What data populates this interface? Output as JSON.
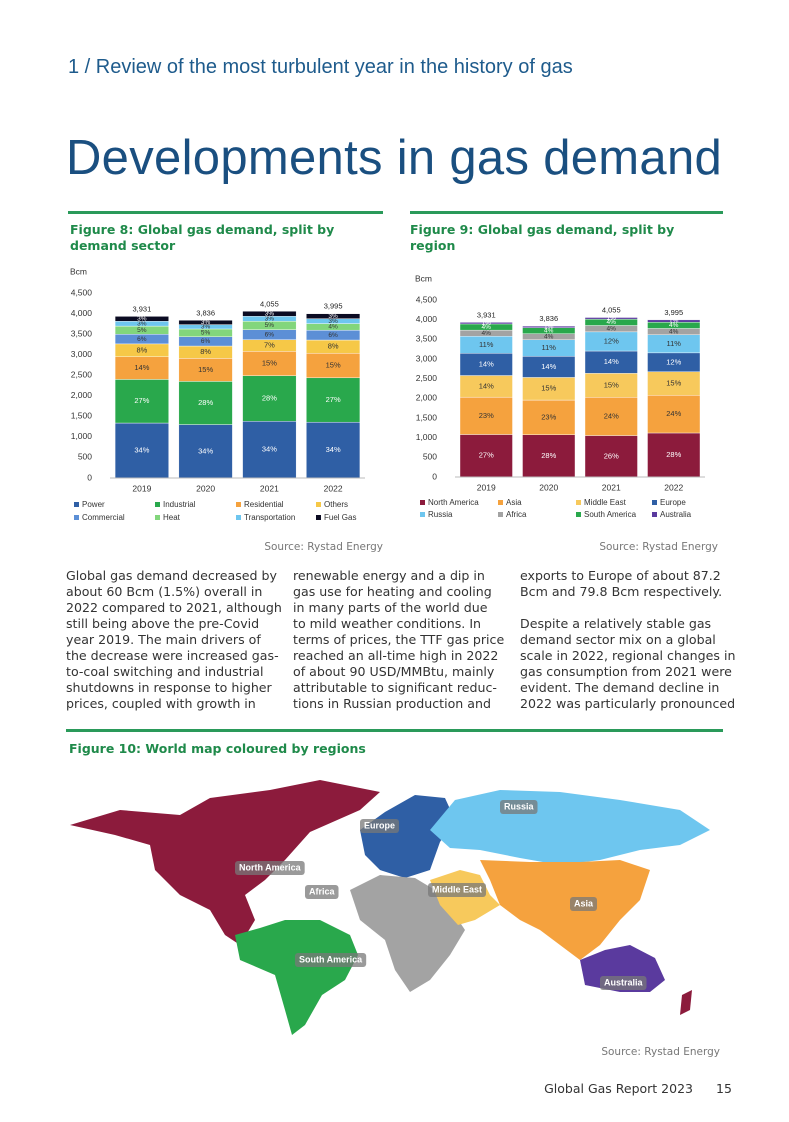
{
  "header": {
    "section": "1 / Review of the most turbulent year in the history of gas",
    "title": "Developments in gas demand"
  },
  "chart_data": [
    {
      "type": "stacked_bar",
      "title": "Figure 8: Global gas demand, split by demand sector",
      "unit_label": "Bcm",
      "source": "Source: Rystad Energy",
      "categories": [
        "2019",
        "2020",
        "2021",
        "2022"
      ],
      "ylim": [
        0,
        4500
      ],
      "yticks": [
        0,
        500,
        {
          "value": 1000,
          "label": "1,000"
        },
        {
          "value": 1500,
          "label": "1,500"
        },
        {
          "value": 2000,
          "label": "2,000"
        },
        {
          "value": 2500,
          "label": "2,500"
        },
        {
          "value": 3000,
          "label": "3,000"
        },
        {
          "value": 3500,
          "label": "3,500"
        },
        {
          "value": 4000,
          "label": "4,000"
        },
        {
          "value": 4500,
          "label": "4,500"
        }
      ],
      "totals": [
        {
          "value": 3931,
          "label": "3,931"
        },
        {
          "value": 3836,
          "label": "3,836"
        },
        {
          "value": 4055,
          "label": "4,055"
        },
        {
          "value": 3995,
          "label": "3,995"
        }
      ],
      "series": [
        {
          "name": "Power",
          "color": "#2f5fa5",
          "values": [
            1337,
            1300,
            1379,
            1358
          ],
          "share_labels": [
            "34%",
            "34%",
            "34%",
            "34%"
          ]
        },
        {
          "name": "Industrial",
          "color": "#29a84c",
          "values": [
            1061,
            1050,
            1110,
            1079
          ],
          "share_labels": [
            "27%",
            "28%",
            "28%",
            "27%"
          ]
        },
        {
          "name": "Residential",
          "color": "#f5a23e",
          "values": [
            550,
            560,
            592,
            599
          ],
          "share_labels": [
            "14%",
            "15%",
            "15%",
            "15%"
          ]
        },
        {
          "name": "Others",
          "color": "#f6c847",
          "values": [
            314,
            300,
            284,
            320
          ],
          "share_labels": [
            "8%",
            "8%",
            "7%",
            "8%"
          ]
        },
        {
          "name": "Commercial",
          "color": "#5c8fd6",
          "values": [
            236,
            225,
            243,
            240
          ],
          "share_labels": [
            "6%",
            "6%",
            "6%",
            "6%"
          ]
        },
        {
          "name": "Heat",
          "color": "#82d67c",
          "values": [
            197,
            190,
            203,
            160
          ],
          "share_labels": [
            "5%",
            "5%",
            "5%",
            "4%"
          ]
        },
        {
          "name": "Transportation",
          "color": "#6ec6ef",
          "values": [
            118,
            106,
            122,
            120
          ],
          "share_labels": [
            "3%",
            "3%",
            "3%",
            "3%"
          ]
        },
        {
          "name": "Fuel Gas",
          "color": "#0b0b22",
          "values": [
            118,
            105,
            122,
            119
          ],
          "share_labels": [
            "3%",
            "3%",
            "3%",
            "3%"
          ]
        }
      ]
    },
    {
      "type": "stacked_bar",
      "title": "Figure 9: Global gas demand, split by region",
      "unit_label": "Bcm",
      "source": "Source: Rystad Energy",
      "categories": [
        "2019",
        "2020",
        "2021",
        "2022"
      ],
      "ylim": [
        0,
        4500
      ],
      "yticks": [
        0,
        500,
        {
          "value": 1000,
          "label": "1,000"
        },
        {
          "value": 1500,
          "label": "1,500"
        },
        {
          "value": 2000,
          "label": "2,000"
        },
        {
          "value": 2500,
          "label": "2,500"
        },
        {
          "value": 3000,
          "label": "3,000"
        },
        {
          "value": 3500,
          "label": "3,500"
        },
        {
          "value": 4000,
          "label": "4,000"
        },
        {
          "value": 4500,
          "label": "4,500"
        }
      ],
      "totals": [
        {
          "value": 3931,
          "label": "3,931"
        },
        {
          "value": 3836,
          "label": "3,836"
        },
        {
          "value": 4055,
          "label": "4,055"
        },
        {
          "value": 3995,
          "label": "3,995"
        }
      ],
      "series": [
        {
          "name": "North America",
          "color": "#8c1b3c",
          "values": [
            1080,
            1074,
            1054,
            1119
          ],
          "share_labels": [
            "27%",
            "28%",
            "26%",
            "28%"
          ]
        },
        {
          "name": "Asia",
          "color": "#f5a23e",
          "values": [
            950,
            882,
            973,
            959
          ],
          "share_labels": [
            "23%",
            "23%",
            "24%",
            "24%"
          ]
        },
        {
          "name": "Middle East",
          "color": "#f7c95c",
          "values": [
            550,
            575,
            608,
            599
          ],
          "share_labels": [
            "14%",
            "15%",
            "15%",
            "15%"
          ]
        },
        {
          "name": "Europe",
          "color": "#2f5fa5",
          "values": [
            565,
            537,
            568,
            479
          ],
          "share_labels": [
            "14%",
            "14%",
            "14%",
            "12%"
          ]
        },
        {
          "name": "Russia",
          "color": "#6ec6ef",
          "values": [
            432,
            422,
            487,
            460
          ],
          "share_labels": [
            "11%",
            "11%",
            "12%",
            "11%"
          ]
        },
        {
          "name": "Africa",
          "color": "#a3a3a3",
          "values": [
            157,
            153,
            162,
            160
          ],
          "share_labels": [
            "4%",
            "4%",
            "4%",
            "4%"
          ]
        },
        {
          "name": "South America",
          "color": "#29a84c",
          "values": [
            157,
            153,
            162,
            160
          ],
          "share_labels": [
            "4%",
            "4%",
            "4%",
            "4%"
          ]
        },
        {
          "name": "Australia",
          "color": "#5a3a9e",
          "values": [
            40,
            40,
            41,
            59
          ],
          "share_labels": [
            "1%",
            "1%",
            "1%",
            "1%"
          ]
        }
      ]
    }
  ],
  "body": {
    "columns": [
      [
        [
          "Global gas demand decreased by",
          "about 60 Bcm (1.5%) overall in",
          "2022 compared to 2021, although",
          "still being above the pre-Covid",
          "year 2019. The main drivers of",
          "the decrease were increased gas-",
          "to-coal switching and industrial",
          "shutdowns in response to higher",
          "prices, coupled with growth in"
        ]
      ],
      [
        [
          "renewable energy and a dip in",
          "gas use for heating and cooling",
          "in many parts of the world due",
          "to mild weather conditions. In",
          "terms of prices, the TTF gas price",
          "reached an all-time high in 2022",
          "of about 90 USD/MMBtu, mainly",
          "attributable to significant reduc-",
          "tions in Russian production and"
        ]
      ],
      [
        [
          "exports to Europe of about 87.2",
          "Bcm and 79.8 Bcm respectively."
        ],
        [
          "Despite a relatively stable gas",
          "demand sector mix on a global",
          "scale in 2022, regional changes in",
          "gas consumption from 2021 were",
          "evident. The demand decline in",
          "2022 was particularly pronounced"
        ]
      ]
    ]
  },
  "map": {
    "title": "Figure 10: World map coloured by regions",
    "source": "Source: Rystad Energy",
    "regions": [
      "North America",
      "South America",
      "Europe",
      "Russia",
      "Africa",
      "Middle East",
      "Asia",
      "Australia"
    ]
  },
  "footer": {
    "report": "Global Gas Report 2023",
    "page": "15"
  }
}
